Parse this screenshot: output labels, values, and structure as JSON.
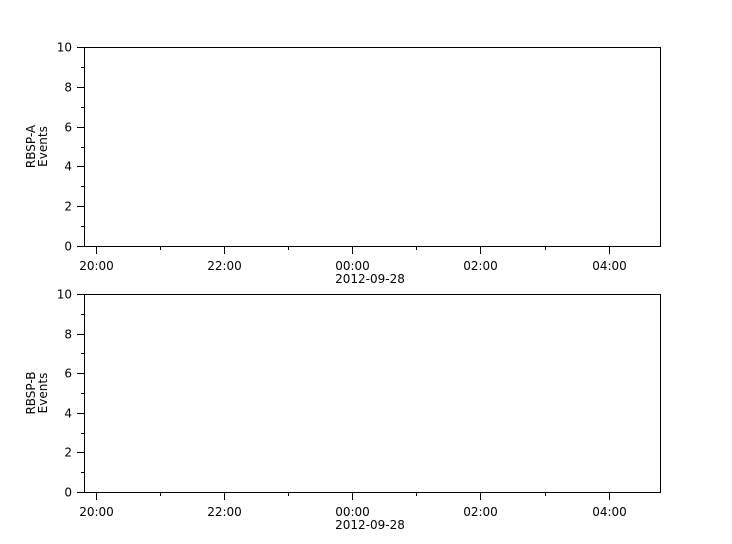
{
  "chart_data": [
    {
      "type": "line",
      "ylabel": [
        "RBSP-A",
        "Events"
      ],
      "ylim": [
        0,
        10
      ],
      "yticks": [
        0,
        2,
        4,
        6,
        8,
        10
      ],
      "xlim": [
        "2012-09-27 19:49",
        "2012-09-28 04:48"
      ],
      "xticks": [
        "20:00",
        "22:00",
        "00:00",
        "02:00",
        "04:00"
      ],
      "xlabel": "2012-09-28",
      "series": [],
      "grid": false
    },
    {
      "type": "line",
      "ylabel": [
        "RBSP-B",
        "Events"
      ],
      "ylim": [
        0,
        10
      ],
      "yticks": [
        0,
        2,
        4,
        6,
        8,
        10
      ],
      "xlim": [
        "2012-09-27 19:49",
        "2012-09-28 04:48"
      ],
      "xticks": [
        "20:00",
        "22:00",
        "00:00",
        "02:00",
        "04:00"
      ],
      "xlabel": "2012-09-28",
      "series": [],
      "grid": false
    }
  ]
}
